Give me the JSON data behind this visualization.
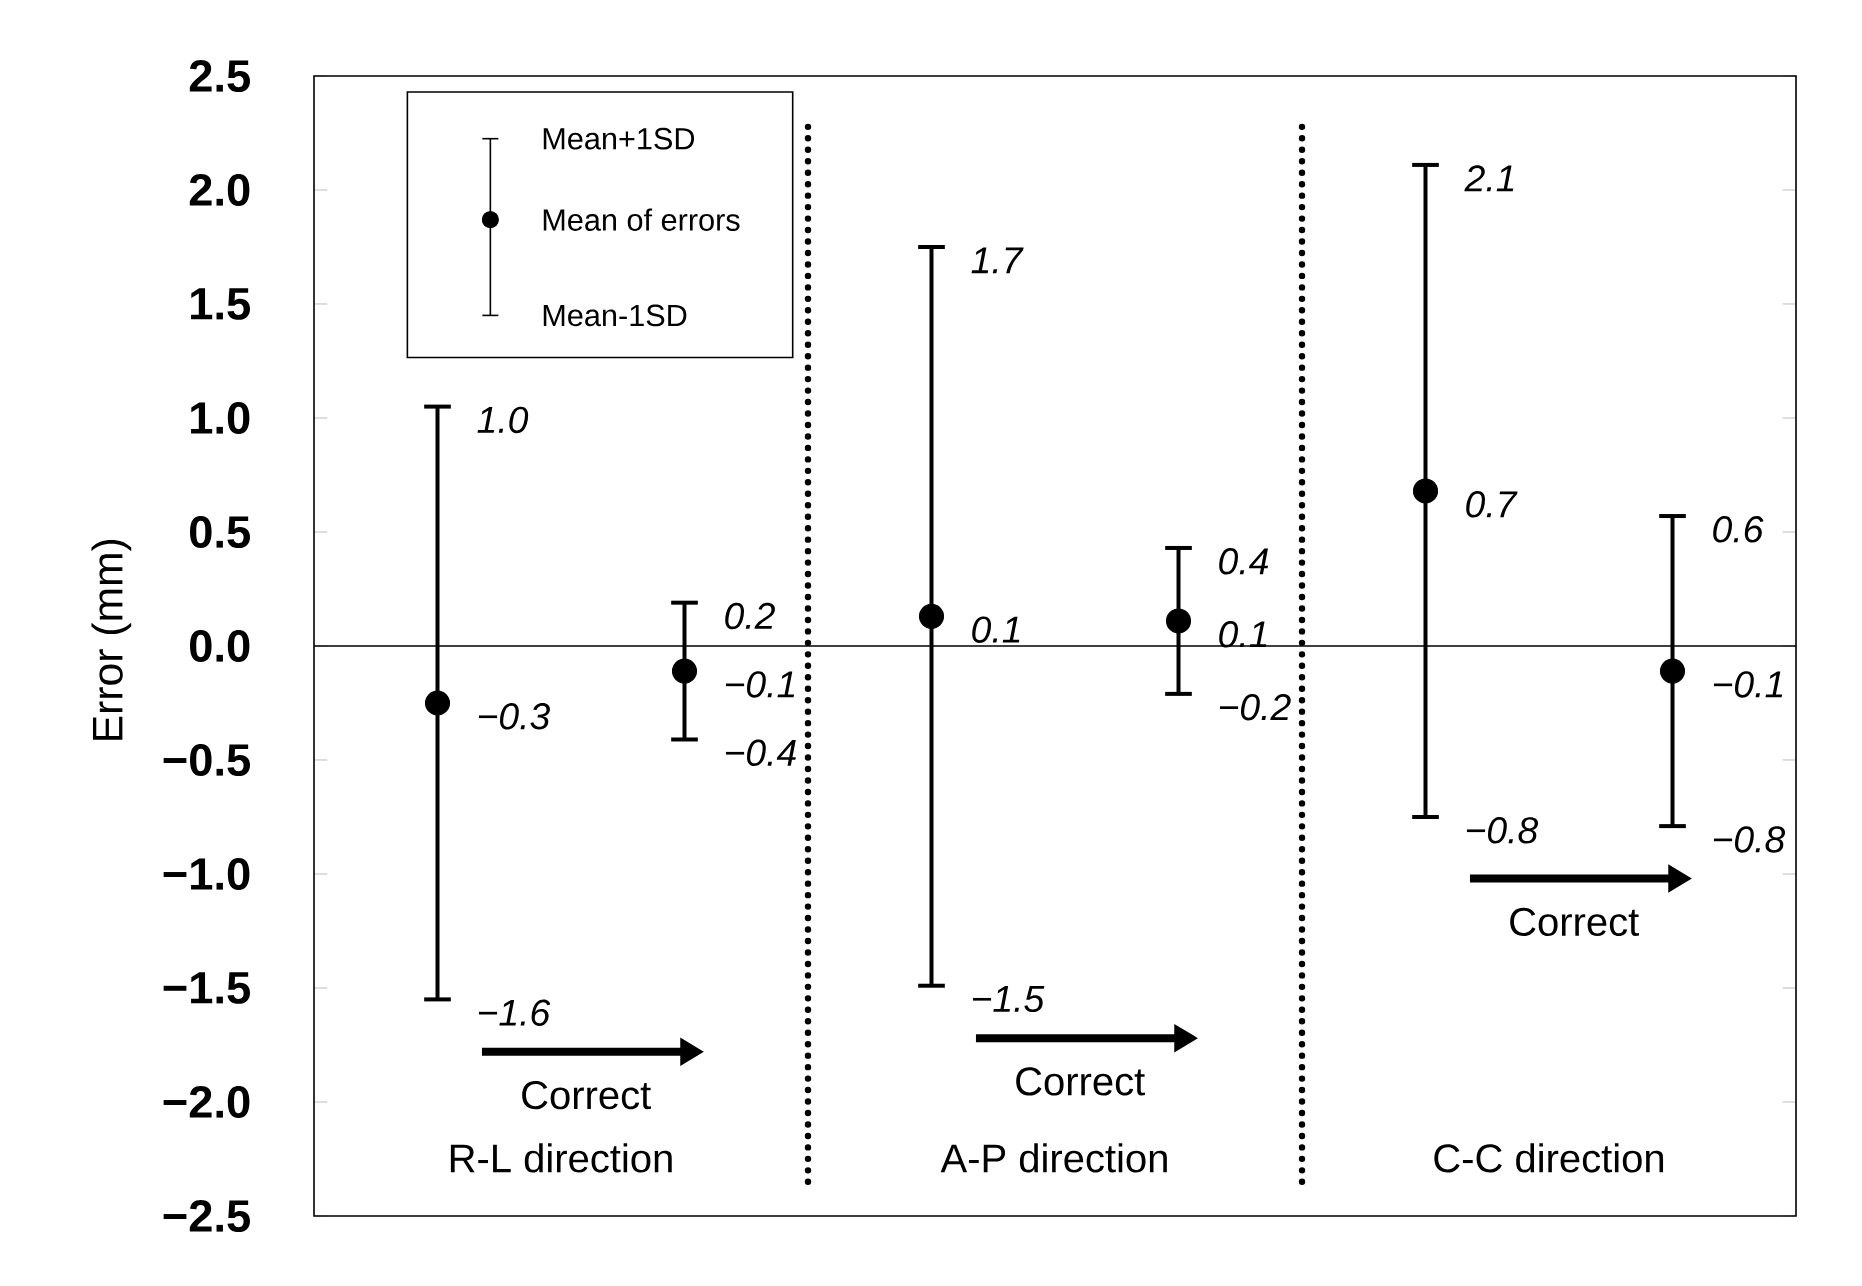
{
  "chart_data": {
    "type": "scatter",
    "categories": [
      "R-L direction",
      "A-P direction",
      "C-C direction"
    ],
    "series": [
      {
        "name": "Mean of errors",
        "color": "#000000",
        "values": [
          -0.25,
          0.13,
          0.68
        ],
        "errors": [
          1.3,
          1.62,
          1.43
        ],
        "value_labels": [
          "−0.3",
          "0.1",
          "0.7"
        ]
      },
      {
        "color": "#000000",
        "values": [
          -0.11,
          0.11,
          -0.11
        ],
        "errors": [
          0.3,
          0.32,
          0.68
        ],
        "value_labels": [
          "−0.1",
          "0.1",
          "−0.1"
        ]
      }
    ],
    "ylabel": "Error (mm)",
    "ylim": [
      -2.5,
      2.5
    ],
    "yticks": [
      {
        "value": 2.5,
        "label": "2.5"
      },
      {
        "value": 2,
        "label": "2.0"
      },
      {
        "value": 1.5,
        "label": "1.5"
      },
      {
        "value": 1,
        "label": "1.0"
      },
      {
        "value": 0.5,
        "label": "0.5"
      },
      {
        "value": 0,
        "label": "0.0"
      },
      {
        "value": -0.5,
        "label": "−0.5"
      },
      {
        "value": -1,
        "label": "−1.0"
      },
      {
        "value": -1.5,
        "label": "−1.5"
      },
      {
        "value": -2,
        "label": "−2.0"
      },
      {
        "value": -2.5,
        "label": "−2.5"
      }
    ],
    "marker": "circle",
    "legend": "top left",
    "ref_lines": [
      {
        "axis": "y",
        "value": 0,
        "line_style": "solid"
      }
    ],
    "annotations": [
      "Mean+1SD",
      "Mean-1SD",
      "1.0",
      "−1.6",
      "0.2",
      "−0.4",
      "1.7",
      "−1.5",
      "0.4",
      "−0.2",
      "2.1",
      "−0.8",
      "0.6",
      "−0.8",
      "Correct",
      "Correct",
      "Correct"
    ]
  }
}
